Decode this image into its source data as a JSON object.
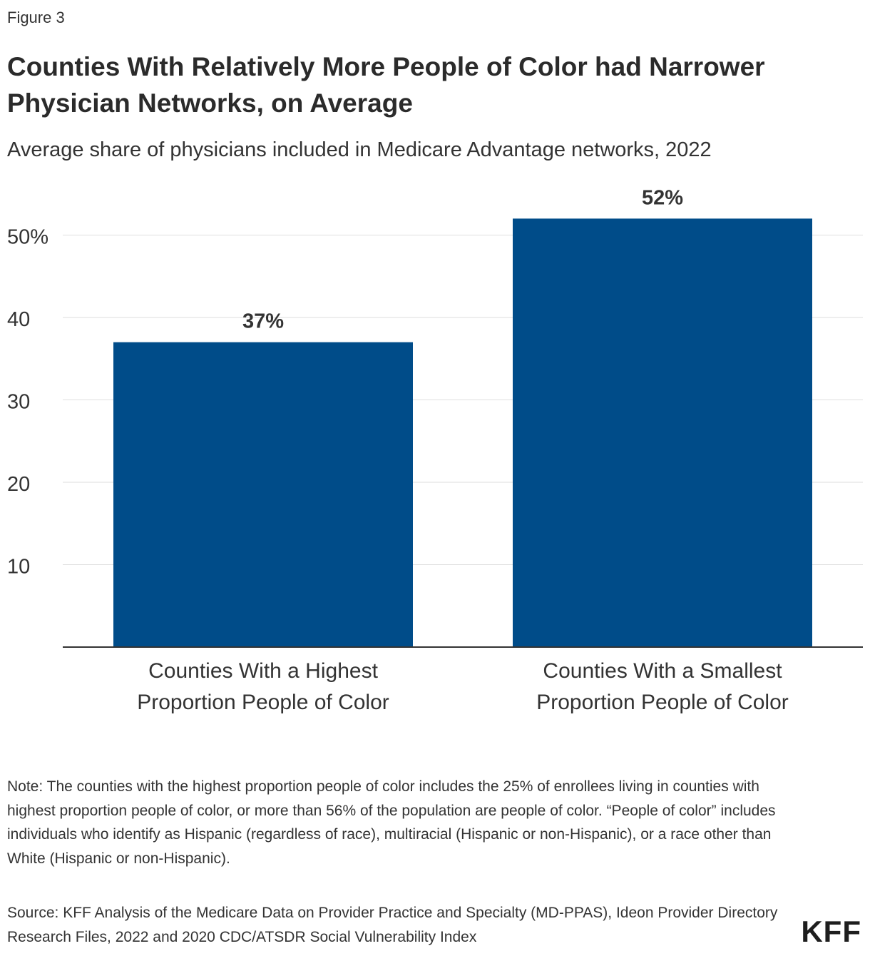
{
  "figure_label": "Figure 3",
  "title": "Counties With Relatively More People of Color had Narrower Physician Networks, on Average",
  "subtitle": "Average share of physicians included in Medicare Advantage networks, 2022",
  "chart_data": {
    "type": "bar",
    "categories": [
      [
        "Counties With a Highest",
        "Proportion People of Color"
      ],
      [
        "Counties With a Smallest",
        "Proportion People of Color"
      ]
    ],
    "values": [
      37,
      52
    ],
    "data_labels": [
      "37%",
      "52%"
    ],
    "y_ticks": [
      10,
      20,
      30,
      40,
      50
    ],
    "y_tick_labels": [
      "10",
      "20",
      "30",
      "40",
      "50%"
    ],
    "ylim": [
      0,
      55
    ],
    "grid": true,
    "bar_color": "#004c89",
    "grid_color": "#dedede",
    "axis_color": "#333333"
  },
  "note": "Note: The counties with the highest proportion people of color includes the 25% of enrollees living in counties with highest proportion people of color, or more than 56% of the population are people of color. “People of color” includes individuals who identify as Hispanic (regardless of race), multiracial (Hispanic or non-Hispanic), or a race other than White (Hispanic or non-Hispanic).",
  "source": "Source: KFF Analysis of the Medicare Data on Provider Practice and Specialty (MD-PPAS), Ideon Provider Directory Research Files, 2022 and 2020 CDC/ATSDR Social Vulnerability Index",
  "logo": "KFF"
}
